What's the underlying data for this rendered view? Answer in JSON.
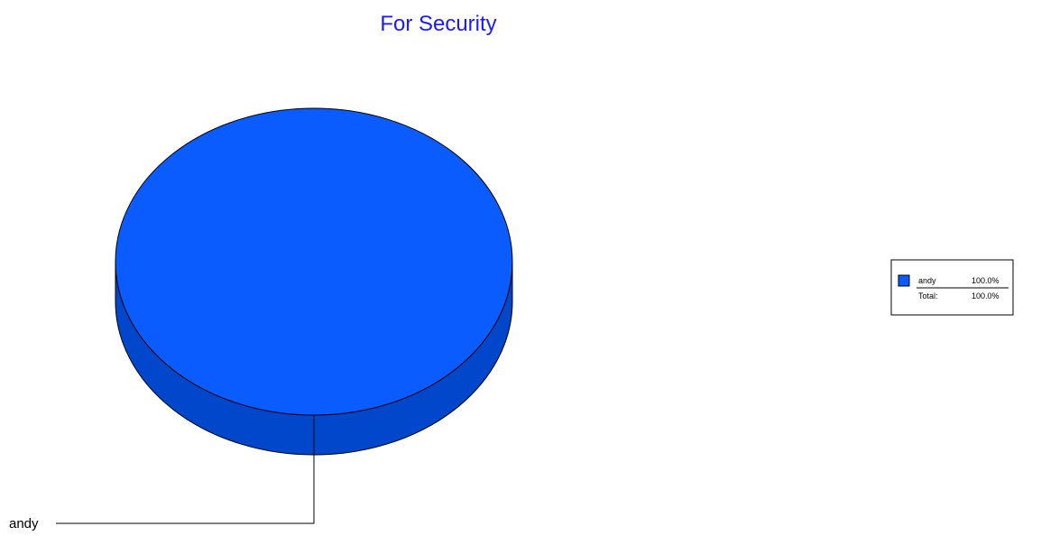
{
  "chart_data": {
    "type": "pie",
    "title": "For Security",
    "categories": [
      "andy"
    ],
    "values": [
      100.0
    ],
    "colors": {
      "title": "#1a1aff",
      "slice_top": "#0a5cff",
      "slice_side": "#0047cc",
      "outline": "#000000"
    },
    "legend": {
      "placement": "right",
      "entries": [
        {
          "label": "andy",
          "value_text": "100.0%"
        }
      ],
      "total_label": "Total:",
      "total_value": "100.0%"
    },
    "slice_labels": [
      "andy"
    ]
  }
}
